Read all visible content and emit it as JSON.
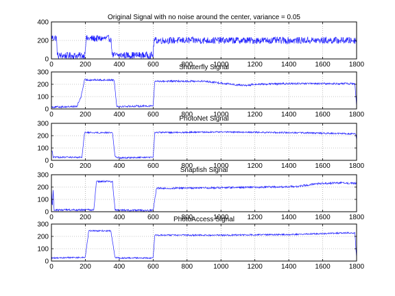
{
  "colors": {
    "signal": "#1f1fff",
    "axis": "#000000",
    "grid": "#8c8c8c",
    "background": "#ffffff"
  },
  "chart_data": [
    {
      "type": "line",
      "title": "Original Signal with no noise around the center, variance = 0.05",
      "xlim": [
        0,
        1800
      ],
      "ylim": [
        0,
        400
      ],
      "xticks": [
        "0",
        "200",
        "400",
        "600",
        "800",
        "1000",
        "1200",
        "1400",
        "1600",
        "1800"
      ],
      "yticks": [
        "0",
        "200",
        "400"
      ],
      "grid": true,
      "noise": 25,
      "series": [
        {
          "values_desc": "piecewise",
          "x": [
            0,
            5,
            30,
            35,
            195,
            205,
            350,
            360,
            600,
            605,
            1800
          ],
          "y": [
            240,
            230,
            225,
            35,
            35,
            220,
            220,
            40,
            40,
            200,
            200
          ]
        }
      ]
    },
    {
      "type": "line",
      "title": "Shutterfly Signal",
      "xlim": [
        0,
        1800
      ],
      "ylim": [
        0,
        300
      ],
      "xticks": [
        "0",
        "200",
        "400",
        "600",
        "800",
        "1000",
        "1200",
        "1400",
        "1600",
        "1800"
      ],
      "yticks": [
        "0",
        "100",
        "200",
        "300"
      ],
      "grid": true,
      "noise": 5,
      "series": [
        {
          "x": [
            0,
            150,
            175,
            195,
            370,
            385,
            400,
            600,
            610,
            900,
            1000,
            1100,
            1150,
            1200,
            1400,
            1600,
            1790,
            1795,
            1800
          ],
          "y": [
            15,
            20,
            100,
            235,
            235,
            25,
            20,
            25,
            225,
            225,
            210,
            195,
            190,
            200,
            205,
            205,
            205,
            110,
            25
          ]
        }
      ]
    },
    {
      "type": "line",
      "title": "PhotoNet Signal",
      "xlim": [
        0,
        1800
      ],
      "ylim": [
        0,
        300
      ],
      "xticks": [
        "0",
        "200",
        "400",
        "600",
        "800",
        "1000",
        "1200",
        "1400",
        "1600",
        "1800"
      ],
      "yticks": [
        "0",
        "100",
        "200",
        "300"
      ],
      "grid": true,
      "noise": 4,
      "series": [
        {
          "x": [
            0,
            5,
            10,
            20,
            180,
            195,
            360,
            375,
            400,
            600,
            610,
            1000,
            1400,
            1795,
            1800
          ],
          "y": [
            80,
            70,
            25,
            25,
            25,
            225,
            225,
            30,
            20,
            25,
            225,
            230,
            225,
            215,
            160
          ]
        }
      ]
    },
    {
      "type": "line",
      "title": "Snapfish Signal",
      "xlim": [
        0,
        1800
      ],
      "ylim": [
        0,
        300
      ],
      "xticks": [
        "0",
        "200",
        "400",
        "600",
        "800",
        "1000",
        "1200",
        "1400",
        "1600",
        "1800"
      ],
      "yticks": [
        "0",
        "100",
        "200",
        "300"
      ],
      "grid": true,
      "noise": 5,
      "series": [
        {
          "x": [
            0,
            5,
            10,
            15,
            250,
            265,
            360,
            375,
            400,
            600,
            620,
            1000,
            1300,
            1450,
            1550,
            1700,
            1800
          ],
          "y": [
            200,
            20,
            180,
            15,
            15,
            245,
            245,
            15,
            12,
            12,
            190,
            195,
            200,
            205,
            225,
            235,
            230
          ]
        }
      ]
    },
    {
      "type": "line",
      "title": "PhotoAccess Signal",
      "xlim": [
        0,
        1800
      ],
      "ylim": [
        0,
        300
      ],
      "xticks": [
        "0",
        "200",
        "400",
        "600",
        "800",
        "1000",
        "1200",
        "1400",
        "1600",
        "1800"
      ],
      "yticks": [
        "0",
        "100",
        "200",
        "300"
      ],
      "grid": true,
      "noise": 4,
      "series": [
        {
          "x": [
            0,
            200,
            220,
            350,
            375,
            400,
            600,
            610,
            1000,
            1400,
            1790,
            1795,
            1800
          ],
          "y": [
            25,
            30,
            245,
            245,
            30,
            25,
            25,
            210,
            210,
            215,
            230,
            120,
            20
          ]
        }
      ]
    }
  ]
}
